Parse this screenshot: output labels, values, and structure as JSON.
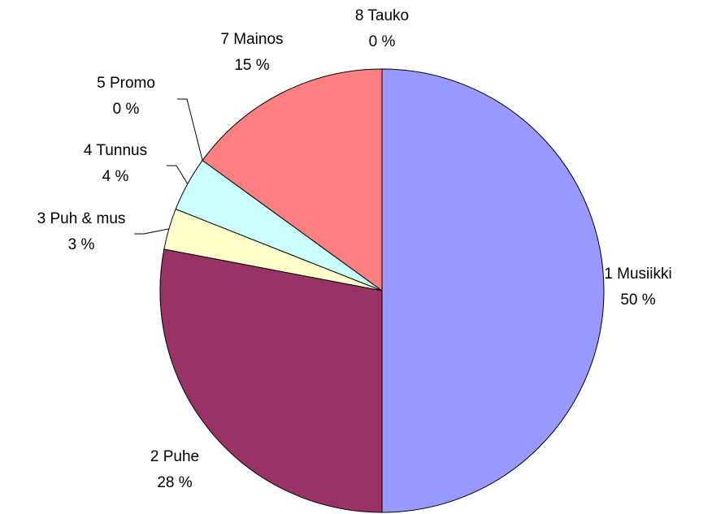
{
  "chart_data": {
    "type": "pie",
    "categories": [
      "1 Musiikki",
      "2 Puhe",
      "3 Puh & mus",
      "4 Tunnus",
      "5 Promo",
      "7 Mainos",
      "8 Tauko"
    ],
    "values": [
      50,
      28,
      3,
      4,
      0,
      15,
      0
    ],
    "value_labels": [
      "50 %",
      "28 %",
      "3 %",
      "4 %",
      "0 %",
      "15 %",
      "0 %"
    ],
    "colors": [
      "#9999ff",
      "#993366",
      "#ffffcc",
      "#ccffff",
      "#660066",
      "#ff8080",
      "#0066cc"
    ]
  }
}
